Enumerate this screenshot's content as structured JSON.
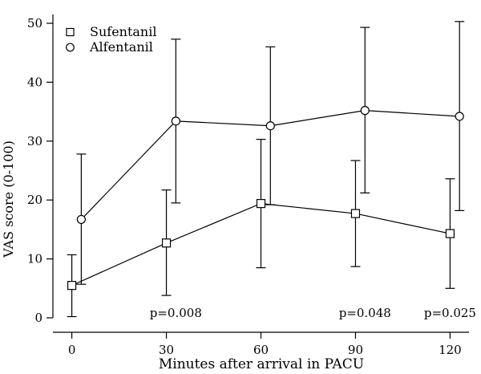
{
  "chart_data": {
    "type": "line",
    "xlabel": "Minutes after arrival in PACU",
    "ylabel": "VAS score (0-100)",
    "xlim": [
      -6,
      126
    ],
    "ylim": [
      0,
      50
    ],
    "x_ticks": [
      0,
      30,
      60,
      90,
      120
    ],
    "y_ticks": [
      0,
      10,
      20,
      30,
      40,
      50
    ],
    "legend_position": "top-left",
    "series": [
      {
        "name": "Sufentanil",
        "marker": "square",
        "x": [
          0,
          30,
          60,
          90,
          120
        ],
        "values": [
          5.5,
          12.7,
          19.4,
          17.7,
          14.3
        ],
        "error_low": [
          0.2,
          3.8,
          8.5,
          8.7,
          5.0
        ],
        "error_high": [
          10.7,
          21.7,
          30.3,
          26.7,
          23.6
        ]
      },
      {
        "name": "Alfentanil",
        "marker": "circle",
        "x": [
          3,
          33,
          63,
          93,
          123
        ],
        "values": [
          16.7,
          33.4,
          32.6,
          35.2,
          34.2
        ],
        "error_low": [
          5.7,
          19.5,
          19.2,
          21.2,
          18.2
        ],
        "error_high": [
          27.8,
          47.3,
          46.0,
          49.3,
          50.3
        ]
      }
    ],
    "annotations": [
      {
        "text": "p=0.008",
        "x": 33
      },
      {
        "text": "p=0.048",
        "x": 93
      },
      {
        "text": "p=0.025",
        "x": 120
      }
    ]
  }
}
